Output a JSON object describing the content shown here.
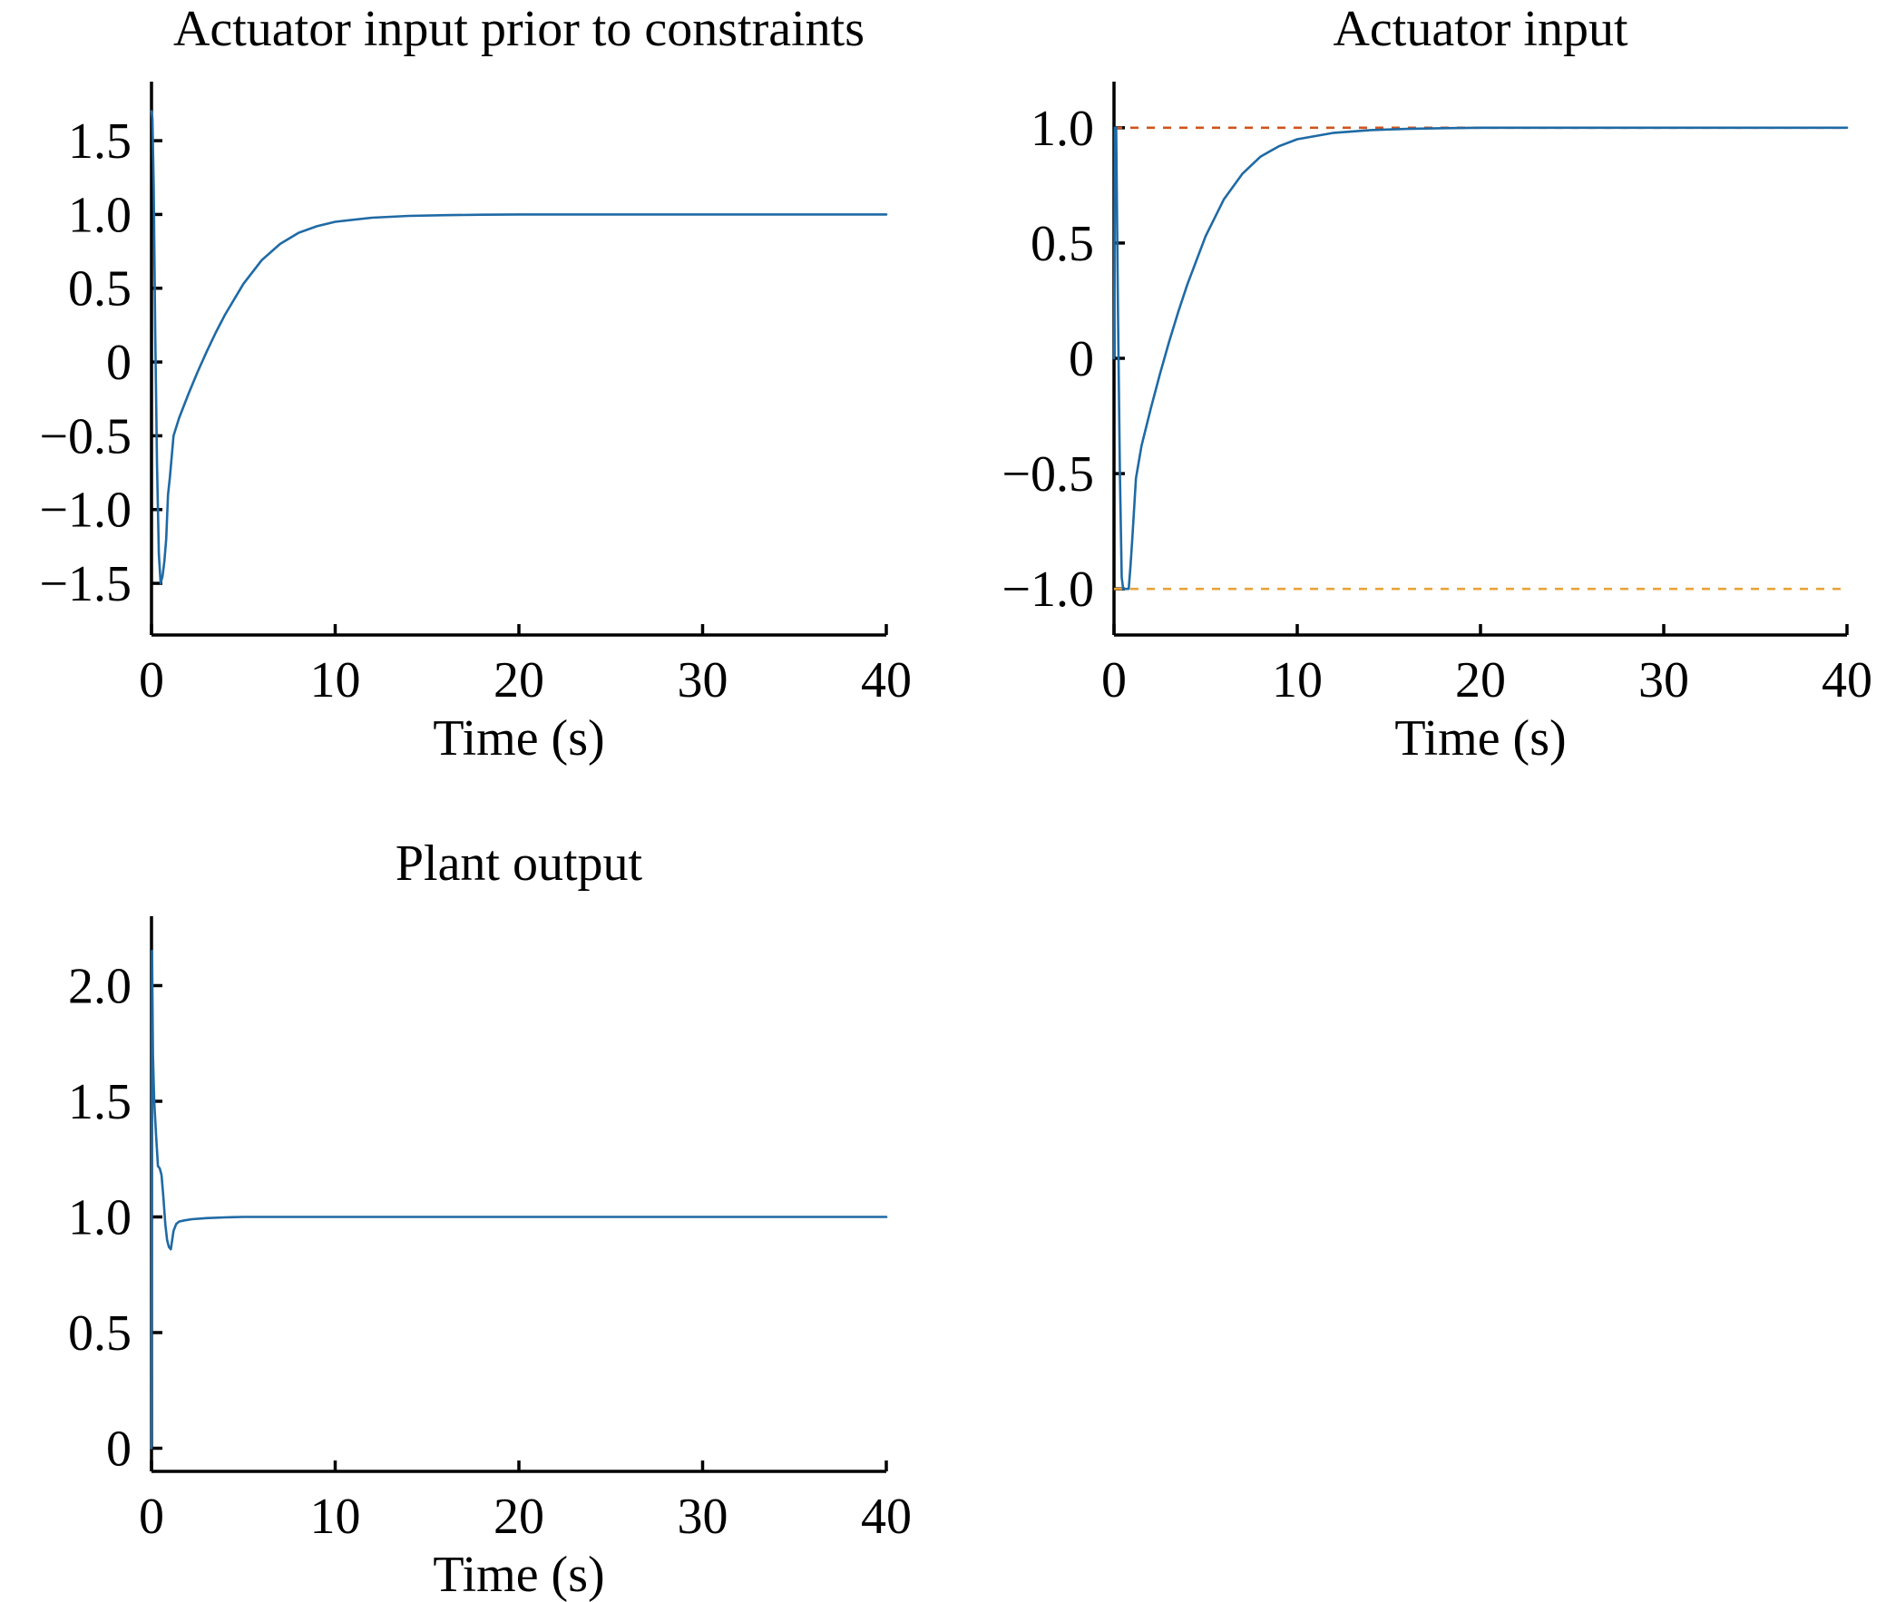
{
  "figure": {
    "panels_count": 3
  },
  "chart_data": [
    {
      "type": "line",
      "title": "Actuator input prior to constraints",
      "xlabel": "Time (s)",
      "ylabel": "",
      "xlim": [
        0,
        40
      ],
      "ylim": [
        -1.85,
        1.9
      ],
      "xticks": [
        0,
        10,
        20,
        30,
        40
      ],
      "xtick_labels": [
        "0",
        "10",
        "20",
        "30",
        "40"
      ],
      "yticks": [
        -1.5,
        -1.0,
        -0.5,
        0,
        0.5,
        1.0,
        1.5
      ],
      "ytick_labels": [
        "−1.5",
        "−1.0",
        "−0.5",
        "0",
        "0.5",
        "1.0",
        "1.5"
      ],
      "grid": false,
      "series": [
        {
          "color": "#1f6aa5",
          "x": [
            0,
            0.05,
            0.12,
            0.2,
            0.3,
            0.4,
            0.5,
            0.6,
            0.7,
            0.8,
            0.9,
            1.0,
            1.2,
            1.5,
            2,
            2.5,
            3,
            3.5,
            4,
            5,
            6,
            7,
            8,
            9,
            10,
            12,
            14,
            16,
            18,
            20,
            25,
            30,
            35,
            40
          ],
          "y": [
            1.7,
            1.65,
            1.2,
            0.2,
            -0.7,
            -1.3,
            -1.5,
            -1.45,
            -1.35,
            -1.2,
            -0.9,
            -0.78,
            -0.5,
            -0.38,
            -0.22,
            -0.07,
            0.07,
            0.2,
            0.32,
            0.53,
            0.69,
            0.8,
            0.875,
            0.92,
            0.95,
            0.978,
            0.99,
            0.995,
            0.998,
            1.0,
            1.0,
            1.0,
            1.0,
            1.0
          ]
        }
      ]
    },
    {
      "type": "line",
      "title": "Actuator input",
      "xlabel": "Time (s)",
      "ylabel": "",
      "xlim": [
        0,
        40
      ],
      "ylim": [
        -1.2,
        1.2
      ],
      "xticks": [
        0,
        10,
        20,
        30,
        40
      ],
      "xtick_labels": [
        "0",
        "10",
        "20",
        "30",
        "40"
      ],
      "yticks": [
        -1.0,
        -0.5,
        0,
        0.5,
        1.0
      ],
      "ytick_labels": [
        "−1.0",
        "−0.5",
        "0",
        "0.5",
        "1.0"
      ],
      "grid": false,
      "reference_lines": [
        {
          "y": 1.0,
          "color": "#d0541f",
          "style": "dashed"
        },
        {
          "y": -1.0,
          "color": "#e8a33a",
          "style": "dashed"
        }
      ],
      "series": [
        {
          "color": "#1f6aa5",
          "x": [
            0,
            0.05,
            0.12,
            0.22,
            0.32,
            0.42,
            0.5,
            0.6,
            0.7,
            0.8,
            0.9,
            1.0,
            1.2,
            1.5,
            2,
            2.5,
            3,
            3.5,
            4,
            5,
            6,
            7,
            8,
            9,
            10,
            12,
            14,
            16,
            18,
            20,
            25,
            30,
            35,
            40
          ],
          "y": [
            0,
            1.0,
            1.0,
            0.2,
            -0.5,
            -0.95,
            -1.0,
            -1.0,
            -1.0,
            -1.0,
            -0.9,
            -0.78,
            -0.52,
            -0.38,
            -0.22,
            -0.07,
            0.07,
            0.2,
            0.32,
            0.53,
            0.69,
            0.8,
            0.875,
            0.92,
            0.95,
            0.978,
            0.99,
            0.995,
            0.998,
            1.0,
            1.0,
            1.0,
            1.0,
            1.0
          ]
        }
      ]
    },
    {
      "type": "line",
      "title": "Plant output",
      "xlabel": "Time (s)",
      "ylabel": "",
      "xlim": [
        0,
        40
      ],
      "ylim": [
        -0.1,
        2.3
      ],
      "xticks": [
        0,
        10,
        20,
        30,
        40
      ],
      "xtick_labels": [
        "0",
        "10",
        "20",
        "30",
        "40"
      ],
      "yticks": [
        0,
        0.5,
        1.0,
        1.5,
        2.0
      ],
      "ytick_labels": [
        "0",
        "0.5",
        "1.0",
        "1.5",
        "2.0"
      ],
      "grid": false,
      "series": [
        {
          "color": "#1f6aa5",
          "x": [
            0,
            0.03,
            0.08,
            0.15,
            0.25,
            0.35,
            0.45,
            0.55,
            0.65,
            0.75,
            0.85,
            0.95,
            1.05,
            1.2,
            1.35,
            1.5,
            1.8,
            2.2,
            3,
            4,
            5,
            10,
            20,
            30,
            40
          ],
          "y": [
            0,
            2.15,
            1.7,
            1.5,
            1.35,
            1.22,
            1.21,
            1.18,
            1.08,
            0.97,
            0.9,
            0.87,
            0.86,
            0.94,
            0.97,
            0.98,
            0.985,
            0.99,
            0.995,
            0.998,
            1.0,
            1.0,
            1.0,
            1.0,
            1.0
          ]
        }
      ]
    }
  ]
}
